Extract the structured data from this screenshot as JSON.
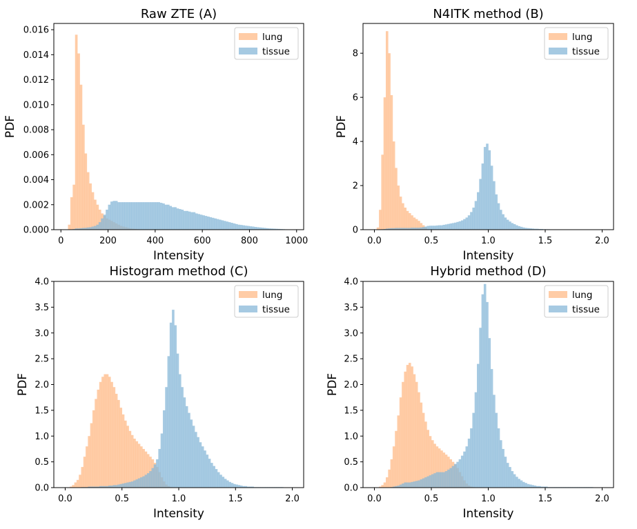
{
  "chart_data": [
    {
      "type": "histogram",
      "title": "Raw ZTE (A)",
      "xlabel": "Intensity",
      "ylabel": "PDF",
      "xlim": [
        -30,
        1030
      ],
      "ylim": [
        0,
        0.0165
      ],
      "xticks": [
        0,
        200,
        400,
        600,
        800,
        1000
      ],
      "xtick_labels": [
        "0",
        "200",
        "400",
        "600",
        "800",
        "1000"
      ],
      "yticks": [
        0,
        0.002,
        0.004,
        0.006,
        0.008,
        0.01,
        0.012,
        0.014,
        0.016
      ],
      "ytick_labels": [
        "0.000",
        "0.002",
        "0.004",
        "0.006",
        "0.008",
        "0.010",
        "0.012",
        "0.014",
        "0.016"
      ],
      "legend": {
        "position": "upper right",
        "entries": [
          "lung",
          "tissue"
        ]
      },
      "series": [
        {
          "name": "lung",
          "color": "#ffbb88",
          "bin_start": 0,
          "bin_width": 10,
          "values": [
            0,
            0,
            0,
            0.0004,
            0.0026,
            0.0036,
            0.0156,
            0.0141,
            0.0116,
            0.0084,
            0.0061,
            0.0046,
            0.0037,
            0.003,
            0.0024,
            0.002,
            0.0016,
            0.0013,
            0.0011,
            0.0009,
            0.0008,
            0.0007,
            0.0006,
            0.0005,
            0.0004,
            0.0003,
            0.00025,
            0.0002,
            0.00015,
            0.0001,
            8e-05,
            6e-05,
            4e-05,
            2e-05,
            1e-05
          ]
        },
        {
          "name": "tissue",
          "color": "#88b8d8",
          "bin_start": 0,
          "bin_width": 10,
          "values": [
            0,
            0,
            0,
            0,
            0,
            5e-05,
            0.0001,
            0.0001,
            0.00012,
            0.00014,
            0.00015,
            0.00018,
            0.0002,
            0.00025,
            0.0003,
            0.0004,
            0.0006,
            0.0009,
            0.0012,
            0.0016,
            0.002,
            0.00225,
            0.0023,
            0.0023,
            0.0022,
            0.0022,
            0.0022,
            0.0022,
            0.0022,
            0.0022,
            0.0022,
            0.0022,
            0.0022,
            0.0022,
            0.0022,
            0.0022,
            0.0022,
            0.0022,
            0.0022,
            0.0022,
            0.0022,
            0.0022,
            0.00215,
            0.0021,
            0.002,
            0.002,
            0.0019,
            0.0018,
            0.0018,
            0.0017,
            0.00165,
            0.0016,
            0.0015,
            0.0015,
            0.00145,
            0.0014,
            0.0014,
            0.0013,
            0.00125,
            0.0012,
            0.00115,
            0.0011,
            0.00105,
            0.001,
            0.00095,
            0.0009,
            0.00085,
            0.0008,
            0.00075,
            0.0007,
            0.00065,
            0.0006,
            0.00055,
            0.0005,
            0.00045,
            0.0004,
            0.00038,
            0.00035,
            0.00032,
            0.0003,
            0.00027,
            0.00025,
            0.00022,
            0.0002,
            0.00018,
            0.00016,
            0.00014,
            0.00012,
            0.0001,
            9e-05,
            8e-05,
            7e-05,
            6e-05,
            5e-05,
            4e-05,
            3e-05,
            2e-05,
            2e-05,
            1e-05,
            1e-05
          ]
        }
      ]
    },
    {
      "type": "histogram",
      "title": "N4ITK method (B)",
      "xlabel": "Intensity",
      "ylabel": "PDF",
      "xlim": [
        -0.1,
        2.1
      ],
      "ylim": [
        0,
        9.35
      ],
      "xticks": [
        0,
        0.5,
        1.0,
        1.5,
        2.0
      ],
      "xtick_labels": [
        "0.0",
        "0.5",
        "1.0",
        "1.5",
        "2.0"
      ],
      "yticks": [
        0,
        2,
        4,
        6,
        8
      ],
      "ytick_labels": [
        "0",
        "2",
        "4",
        "6",
        "8"
      ],
      "legend": {
        "position": "upper right",
        "entries": [
          "lung",
          "tissue"
        ]
      },
      "series": [
        {
          "name": "lung",
          "color": "#ffbb88",
          "bin_start": 0.02,
          "bin_width": 0.02,
          "values": [
            0.1,
            0.9,
            3.4,
            6.0,
            9.0,
            8.0,
            6.1,
            4.0,
            2.8,
            2.0,
            1.5,
            1.2,
            1.0,
            0.85,
            0.75,
            0.65,
            0.55,
            0.48,
            0.4,
            0.3,
            0.2,
            0.1
          ]
        },
        {
          "name": "tissue",
          "color": "#88b8d8",
          "bin_start": 0.02,
          "bin_width": 0.02,
          "values": [
            0,
            0,
            0.02,
            0.03,
            0.05,
            0.06,
            0.07,
            0.07,
            0.08,
            0.08,
            0.08,
            0.08,
            0.08,
            0.08,
            0.08,
            0.09,
            0.09,
            0.09,
            0.09,
            0.1,
            0.12,
            0.14,
            0.17,
            0.18,
            0.18,
            0.18,
            0.19,
            0.2,
            0.2,
            0.22,
            0.24,
            0.26,
            0.28,
            0.3,
            0.32,
            0.35,
            0.38,
            0.42,
            0.48,
            0.55,
            0.65,
            0.8,
            1.0,
            1.3,
            1.7,
            2.3,
            3.0,
            3.75,
            3.9,
            3.6,
            2.9,
            2.2,
            1.6,
            1.2,
            0.9,
            0.7,
            0.55,
            0.45,
            0.37,
            0.3,
            0.25,
            0.2,
            0.16,
            0.13,
            0.1,
            0.08,
            0.07,
            0.06,
            0.05,
            0.04,
            0.04,
            0.03,
            0.03,
            0.02,
            0.02,
            0.02,
            0.01,
            0.01,
            0.01,
            0.01,
            0.01,
            0.01,
            0.01,
            0.01,
            0.01,
            0.01,
            0.01,
            0.01,
            0.01,
            0.01,
            0.01,
            0.01,
            0.01,
            0.01
          ]
        }
      ]
    },
    {
      "type": "histogram",
      "title": "Histogram method (C)",
      "xlabel": "Intensity",
      "ylabel": "PDF",
      "xlim": [
        -0.1,
        2.1
      ],
      "ylim": [
        0,
        4.0
      ],
      "xticks": [
        0,
        0.5,
        1.0,
        1.5,
        2.0
      ],
      "xtick_labels": [
        "0.0",
        "0.5",
        "1.0",
        "1.5",
        "2.0"
      ],
      "yticks": [
        0,
        0.5,
        1.0,
        1.5,
        2.0,
        2.5,
        3.0,
        3.5,
        4.0
      ],
      "ytick_labels": [
        "0.0",
        "0.5",
        "1.0",
        "1.5",
        "2.0",
        "2.5",
        "3.0",
        "3.5",
        "4.0"
      ],
      "legend": {
        "position": "upper right",
        "entries": [
          "lung",
          "tissue"
        ]
      },
      "series": [
        {
          "name": "lung",
          "color": "#ffbb88",
          "bin_start": 0.02,
          "bin_width": 0.02,
          "values": [
            0,
            0.02,
            0.05,
            0.1,
            0.15,
            0.25,
            0.4,
            0.6,
            0.8,
            1.0,
            1.25,
            1.5,
            1.72,
            1.9,
            2.05,
            2.15,
            2.2,
            2.2,
            2.15,
            2.05,
            1.95,
            1.82,
            1.7,
            1.55,
            1.42,
            1.3,
            1.2,
            1.1,
            1.02,
            0.95,
            0.9,
            0.85,
            0.8,
            0.75,
            0.7,
            0.65,
            0.6,
            0.55,
            0.48,
            0.4,
            0.3,
            0.2,
            0.12,
            0.06,
            0.03,
            0.01
          ]
        },
        {
          "name": "tissue",
          "color": "#88b8d8",
          "bin_start": 0.02,
          "bin_width": 0.02,
          "values": [
            0,
            0,
            0,
            0,
            0,
            0,
            0.01,
            0.01,
            0.01,
            0.02,
            0.02,
            0.02,
            0.02,
            0.02,
            0.03,
            0.03,
            0.03,
            0.03,
            0.04,
            0.04,
            0.05,
            0.05,
            0.06,
            0.07,
            0.08,
            0.09,
            0.1,
            0.11,
            0.12,
            0.14,
            0.16,
            0.18,
            0.2,
            0.22,
            0.25,
            0.28,
            0.32,
            0.38,
            0.45,
            0.55,
            0.75,
            1.05,
            1.5,
            1.95,
            2.55,
            3.2,
            3.45,
            3.15,
            2.6,
            2.2,
            1.95,
            1.75,
            1.58,
            1.45,
            1.32,
            1.2,
            1.08,
            0.98,
            0.88,
            0.8,
            0.72,
            0.64,
            0.56,
            0.48,
            0.42,
            0.36,
            0.3,
            0.25,
            0.21,
            0.17,
            0.14,
            0.11,
            0.09,
            0.07,
            0.06,
            0.05,
            0.04,
            0.03,
            0.03,
            0.02,
            0.02,
            0.02,
            0.01,
            0.01,
            0.01,
            0.01,
            0.01,
            0.01,
            0.01,
            0.01,
            0.01,
            0.01,
            0.01,
            0.01,
            0.01
          ]
        }
      ]
    },
    {
      "type": "histogram",
      "title": "Hybrid method (D)",
      "xlabel": "Intensity",
      "ylabel": "PDF",
      "xlim": [
        -0.1,
        2.1
      ],
      "ylim": [
        0,
        4.0
      ],
      "xticks": [
        0,
        0.5,
        1.0,
        1.5,
        2.0
      ],
      "xtick_labels": [
        "0.0",
        "0.5",
        "1.0",
        "1.5",
        "2.0"
      ],
      "yticks": [
        0,
        0.5,
        1.0,
        1.5,
        2.0,
        2.5,
        3.0,
        3.5,
        4.0
      ],
      "ytick_labels": [
        "0.0",
        "0.5",
        "1.0",
        "1.5",
        "2.0",
        "2.5",
        "3.0",
        "3.5",
        "4.0"
      ],
      "legend": {
        "position": "upper right",
        "entries": [
          "lung",
          "tissue"
        ]
      },
      "series": [
        {
          "name": "lung",
          "color": "#ffbb88",
          "bin_start": 0.02,
          "bin_width": 0.02,
          "values": [
            0,
            0.02,
            0.05,
            0.1,
            0.2,
            0.35,
            0.55,
            0.8,
            1.1,
            1.4,
            1.75,
            2.05,
            2.25,
            2.38,
            2.42,
            2.35,
            2.2,
            2.05,
            1.85,
            1.65,
            1.45,
            1.28,
            1.12,
            1.0,
            0.92,
            0.85,
            0.8,
            0.76,
            0.72,
            0.68,
            0.64,
            0.6,
            0.55,
            0.5,
            0.45,
            0.38,
            0.3,
            0.22,
            0.14,
            0.08,
            0.04,
            0.02,
            0.01
          ]
        },
        {
          "name": "tissue",
          "color": "#88b8d8",
          "bin_start": 0.02,
          "bin_width": 0.02,
          "values": [
            0,
            0,
            0,
            0,
            0,
            0,
            0.01,
            0.02,
            0.03,
            0.04,
            0.06,
            0.08,
            0.1,
            0.1,
            0.1,
            0.11,
            0.12,
            0.13,
            0.14,
            0.16,
            0.18,
            0.2,
            0.22,
            0.24,
            0.26,
            0.28,
            0.3,
            0.3,
            0.3,
            0.3,
            0.32,
            0.35,
            0.38,
            0.42,
            0.46,
            0.5,
            0.55,
            0.62,
            0.7,
            0.8,
            0.95,
            1.15,
            1.45,
            1.85,
            2.4,
            3.1,
            3.75,
            3.95,
            3.6,
            2.9,
            2.3,
            1.8,
            1.45,
            1.15,
            0.92,
            0.75,
            0.6,
            0.48,
            0.4,
            0.32,
            0.26,
            0.21,
            0.17,
            0.14,
            0.11,
            0.09,
            0.07,
            0.06,
            0.05,
            0.04,
            0.03,
            0.03,
            0.02,
            0.02,
            0.02,
            0.01,
            0.01,
            0.01,
            0.01,
            0.01,
            0.01,
            0.01,
            0.01,
            0.01,
            0.01,
            0.01,
            0.01,
            0.01,
            0.01,
            0.01,
            0.01,
            0.01,
            0.01,
            0.01,
            0.01
          ]
        }
      ]
    }
  ]
}
